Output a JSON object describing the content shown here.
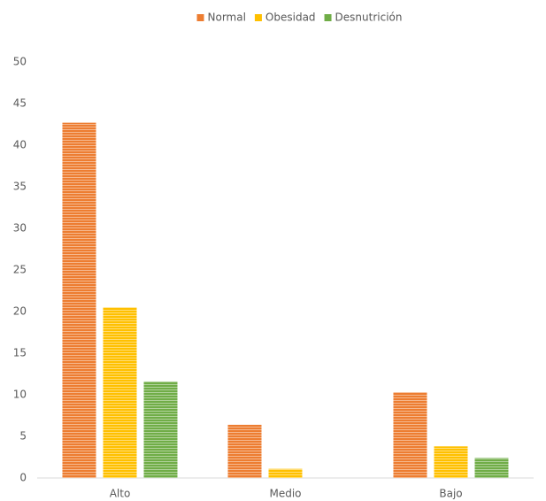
{
  "chart_data": {
    "type": "bar",
    "categories": [
      "Alto",
      "Medio",
      "Bajo"
    ],
    "series": [
      {
        "name": "Normal",
        "color": "#ED7D31",
        "values": [
          42.7,
          6.4,
          10.3
        ]
      },
      {
        "name": "Obesidad",
        "color": "#FFC000",
        "values": [
          20.5,
          1.1,
          3.8
        ]
      },
      {
        "name": "Desnutrición",
        "color": "#70AD47",
        "values": [
          11.6,
          0,
          2.4
        ]
      }
    ],
    "ylim": [
      0,
      50
    ],
    "yticks": [
      0,
      5,
      10,
      15,
      20,
      25,
      30,
      35,
      40,
      45,
      50
    ],
    "grid": false,
    "legend": "top"
  }
}
